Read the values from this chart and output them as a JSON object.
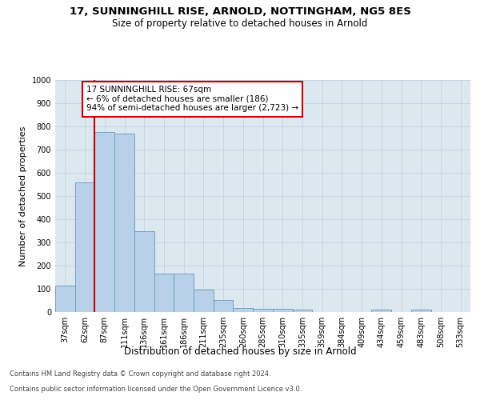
{
  "title_line1": "17, SUNNINGHILL RISE, ARNOLD, NOTTINGHAM, NG5 8ES",
  "title_line2": "Size of property relative to detached houses in Arnold",
  "xlabel": "Distribution of detached houses by size in Arnold",
  "ylabel": "Number of detached properties",
  "categories": [
    "37sqm",
    "62sqm",
    "87sqm",
    "111sqm",
    "136sqm",
    "161sqm",
    "186sqm",
    "211sqm",
    "235sqm",
    "260sqm",
    "285sqm",
    "310sqm",
    "335sqm",
    "359sqm",
    "384sqm",
    "409sqm",
    "434sqm",
    "459sqm",
    "483sqm",
    "508sqm",
    "533sqm"
  ],
  "values": [
    113,
    560,
    777,
    770,
    348,
    165,
    165,
    97,
    53,
    17,
    13,
    13,
    10,
    0,
    0,
    0,
    10,
    0,
    10,
    0,
    0
  ],
  "bar_color": "#b8d0e8",
  "bar_edge_color": "#6699bb",
  "highlight_color": "#cc0000",
  "red_line_x": 1.5,
  "annotation_text": "17 SUNNINGHILL RISE: 67sqm\n← 6% of detached houses are smaller (186)\n94% of semi-detached houses are larger (2,723) →",
  "ylim": [
    0,
    1000
  ],
  "yticks": [
    0,
    100,
    200,
    300,
    400,
    500,
    600,
    700,
    800,
    900,
    1000
  ],
  "grid_color": "#c8d4e0",
  "background_color": "#dce8f0",
  "footer_line1": "Contains HM Land Registry data © Crown copyright and database right 2024.",
  "footer_line2": "Contains public sector information licensed under the Open Government Licence v3.0.",
  "title_fontsize": 9.5,
  "subtitle_fontsize": 8.5,
  "ylabel_fontsize": 8,
  "xlabel_fontsize": 8.5,
  "tick_fontsize": 7,
  "annotation_fontsize": 7.5,
  "footer_fontsize": 6
}
